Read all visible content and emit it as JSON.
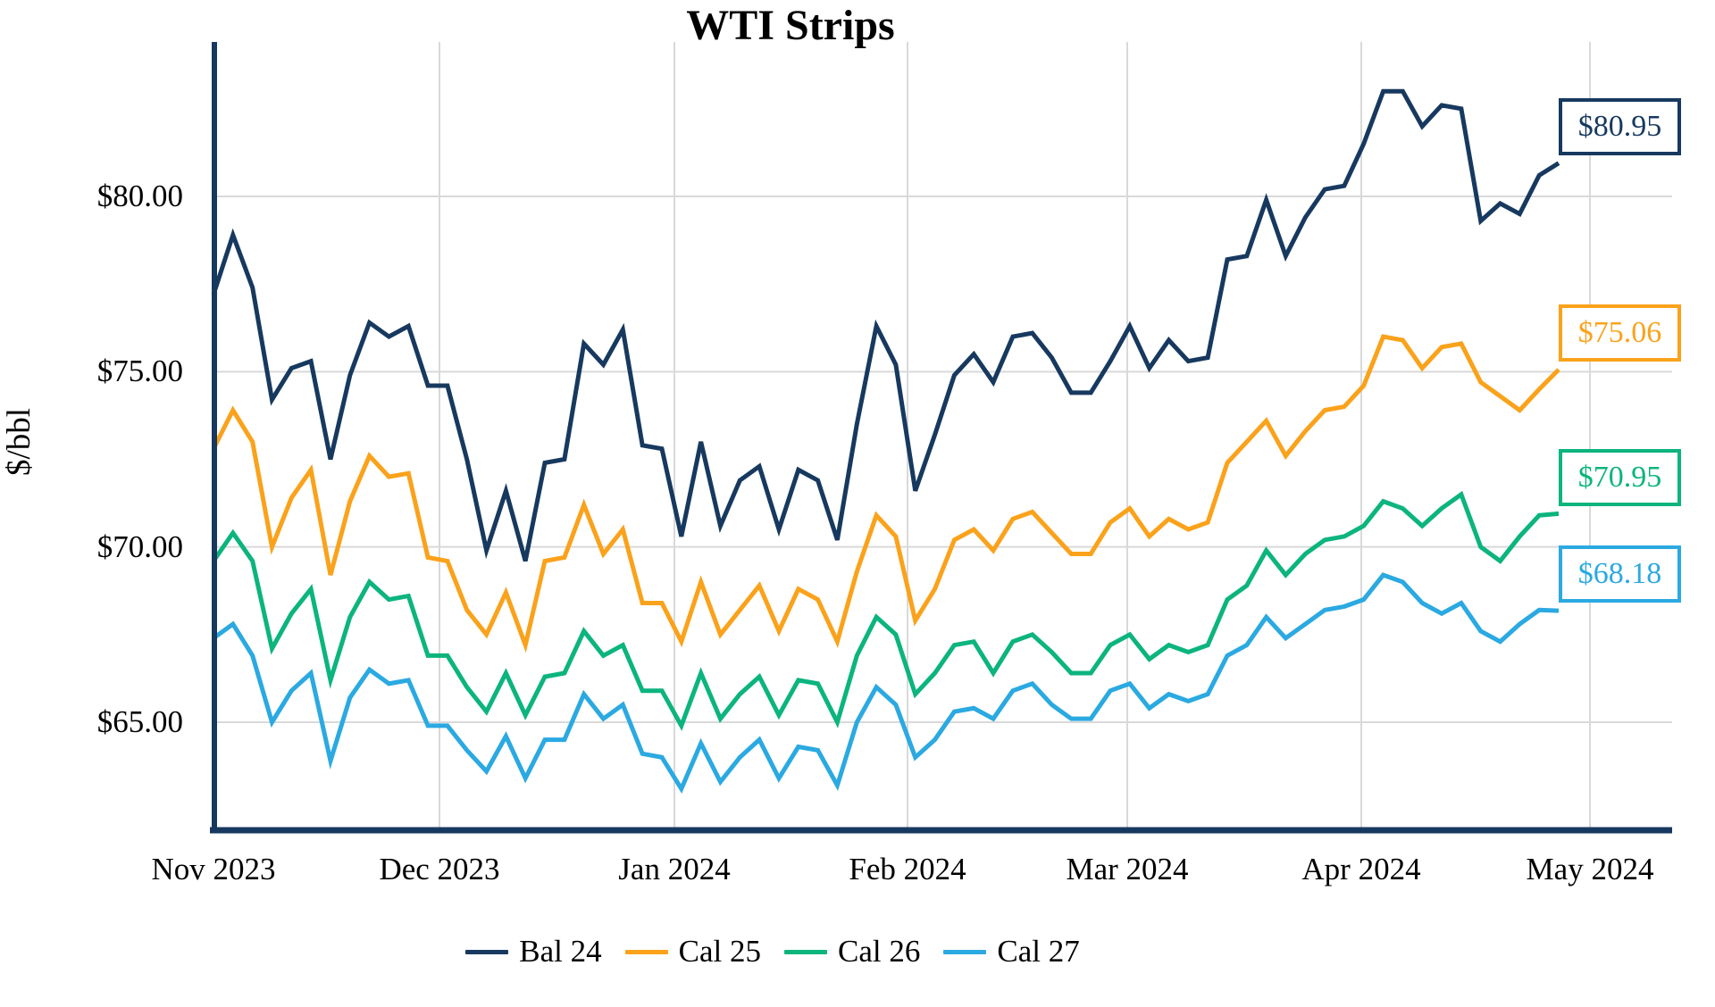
{
  "chart_data": {
    "type": "line",
    "title": "WTI Strips",
    "ylabel": "$/bbl",
    "xlabel": "",
    "ylim": [
      61.8,
      84.4
    ],
    "grid": true,
    "legend_position": "bottom",
    "yticks": [
      {
        "label": "$80.00",
        "value": 80
      },
      {
        "label": "$75.00",
        "value": 75
      },
      {
        "label": "$70.00",
        "value": 70
      },
      {
        "label": "$65.00",
        "value": 65
      }
    ],
    "xticks": [
      "Nov 2023",
      "Dec 2023",
      "Jan 2024",
      "Feb 2024",
      "Mar 2024",
      "Apr 2024",
      "May 2024"
    ],
    "x_range_note": "daily prices from Nov 2023 to late Apr 2024, evenly sampled",
    "series": [
      {
        "name": "Bal 24",
        "color": "#17395F",
        "end_label": "$80.95",
        "end_value": 80.95,
        "values": [
          77.2,
          78.9,
          77.4,
          74.2,
          75.1,
          75.3,
          72.5,
          74.9,
          76.4,
          76.0,
          76.3,
          74.6,
          74.6,
          72.5,
          69.9,
          71.6,
          69.6,
          72.4,
          72.5,
          75.8,
          75.2,
          76.2,
          72.9,
          72.8,
          70.3,
          73.0,
          70.6,
          71.9,
          72.3,
          70.5,
          72.2,
          71.9,
          70.2,
          73.5,
          76.3,
          75.2,
          71.6,
          73.2,
          74.9,
          75.5,
          74.7,
          76.0,
          76.1,
          75.4,
          74.4,
          74.4,
          75.3,
          76.3,
          75.1,
          75.9,
          75.3,
          75.4,
          78.2,
          78.3,
          79.9,
          78.3,
          79.4,
          80.2,
          80.3,
          81.5,
          83.0,
          83.0,
          82.0,
          82.6,
          82.5,
          79.3,
          79.8,
          79.5,
          80.6,
          80.95
        ]
      },
      {
        "name": "Cal 25",
        "color": "#FAA21B",
        "end_label": "$75.06",
        "end_value": 75.06,
        "values": [
          72.8,
          73.9,
          73.0,
          70.0,
          71.4,
          72.2,
          69.2,
          71.3,
          72.6,
          72.0,
          72.1,
          69.7,
          69.6,
          68.2,
          67.5,
          68.7,
          67.2,
          69.6,
          69.7,
          71.2,
          69.8,
          70.5,
          68.4,
          68.4,
          67.3,
          69.0,
          67.5,
          68.2,
          68.9,
          67.6,
          68.8,
          68.5,
          67.3,
          69.3,
          70.9,
          70.3,
          67.9,
          68.8,
          70.2,
          70.5,
          69.9,
          70.8,
          71.0,
          70.4,
          69.8,
          69.8,
          70.7,
          71.1,
          70.3,
          70.8,
          70.5,
          70.7,
          72.4,
          73.0,
          73.6,
          72.6,
          73.3,
          73.9,
          74.0,
          74.6,
          76.0,
          75.9,
          75.1,
          75.7,
          75.8,
          74.7,
          74.3,
          73.9,
          74.5,
          75.06
        ]
      },
      {
        "name": "Cal 26",
        "color": "#0CB47E",
        "end_label": "$70.95",
        "end_value": 70.95,
        "values": [
          69.6,
          70.4,
          69.6,
          67.1,
          68.1,
          68.8,
          66.2,
          68.0,
          69.0,
          68.5,
          68.6,
          66.9,
          66.9,
          66.0,
          65.3,
          66.4,
          65.2,
          66.3,
          66.4,
          67.6,
          66.9,
          67.2,
          65.9,
          65.9,
          64.9,
          66.4,
          65.1,
          65.8,
          66.3,
          65.2,
          66.2,
          66.1,
          65.0,
          66.9,
          68.0,
          67.5,
          65.8,
          66.4,
          67.2,
          67.3,
          66.4,
          67.3,
          67.5,
          67.0,
          66.4,
          66.4,
          67.2,
          67.5,
          66.8,
          67.2,
          67.0,
          67.2,
          68.5,
          68.9,
          69.9,
          69.2,
          69.8,
          70.2,
          70.3,
          70.6,
          71.3,
          71.1,
          70.6,
          71.1,
          71.5,
          70.0,
          69.6,
          70.3,
          70.9,
          70.95
        ]
      },
      {
        "name": "Cal 27",
        "color": "#2BA9E1",
        "end_label": "$68.18",
        "end_value": 68.18,
        "values": [
          67.4,
          67.8,
          66.9,
          65.0,
          65.9,
          66.4,
          63.9,
          65.7,
          66.5,
          66.1,
          66.2,
          64.9,
          64.9,
          64.2,
          63.6,
          64.6,
          63.4,
          64.5,
          64.5,
          65.8,
          65.1,
          65.5,
          64.1,
          64.0,
          63.1,
          64.4,
          63.3,
          64.0,
          64.5,
          63.4,
          64.3,
          64.2,
          63.2,
          65.0,
          66.0,
          65.5,
          64.0,
          64.5,
          65.3,
          65.4,
          65.1,
          65.9,
          66.1,
          65.5,
          65.1,
          65.1,
          65.9,
          66.1,
          65.4,
          65.8,
          65.6,
          65.8,
          66.9,
          67.2,
          68.0,
          67.4,
          67.8,
          68.2,
          68.3,
          68.5,
          69.2,
          69.0,
          68.4,
          68.1,
          68.4,
          67.6,
          67.3,
          67.8,
          68.2,
          68.18
        ]
      }
    ],
    "colors": {
      "gridline": "#D9D9D9",
      "axis": "#17395F",
      "background": "#FFFFFF",
      "title_text": "#000000"
    }
  }
}
